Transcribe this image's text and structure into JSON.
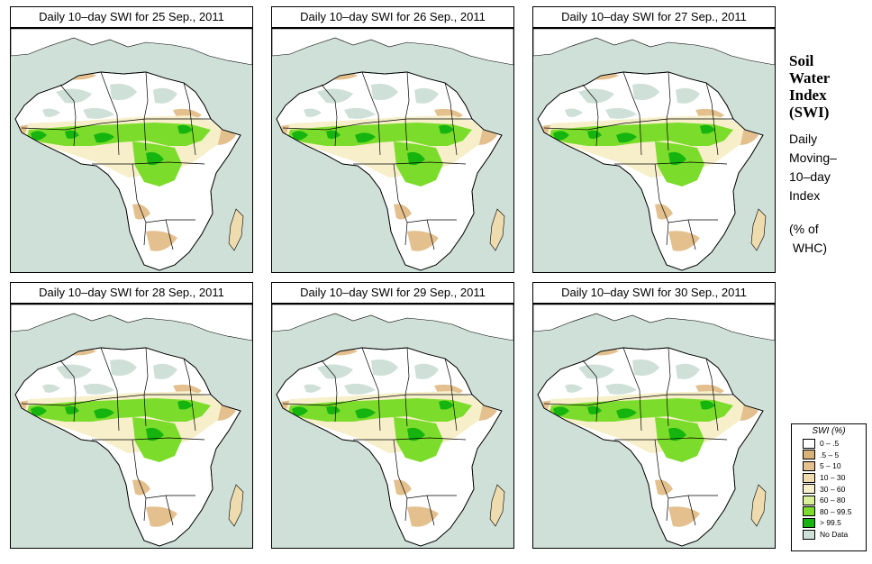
{
  "panels": [
    {
      "title": "Daily 10–day SWI for  25 Sep., 2011"
    },
    {
      "title": "Daily 10–day SWI for  26 Sep., 2011"
    },
    {
      "title": "Daily 10–day SWI for  27 Sep., 2011"
    },
    {
      "title": "Daily 10–day SWI for  28 Sep., 2011"
    },
    {
      "title": "Daily 10–day SWI for  29 Sep., 2011"
    },
    {
      "title": "Daily 10–day SWI for  30 Sep., 2011"
    }
  ],
  "side": {
    "title_lines": [
      "Soil",
      "Water",
      "Index",
      "(SWI)"
    ],
    "sub_lines": [
      "Daily",
      "Moving–",
      "10–day",
      "Index"
    ],
    "unit_lines": [
      "(% of",
      " WHC)"
    ]
  },
  "legend": {
    "title": "SWI (%)",
    "items": [
      {
        "label": "0 – .5",
        "color": "#ffffff"
      },
      {
        "label": ".5 – 5",
        "color": "#d9b27a"
      },
      {
        "label": "5 – 10",
        "color": "#e3c08e"
      },
      {
        "label": "10 – 30",
        "color": "#efdcae"
      },
      {
        "label": "30 – 60",
        "color": "#f6efc9"
      },
      {
        "label": "60 – 80",
        "color": "#d9ef9a"
      },
      {
        "label": "80 – 99.5",
        "color": "#7cdc2c"
      },
      {
        "label": "> 99.5",
        "color": "#16b40f"
      },
      {
        "label": "No Data",
        "color": "#cfe0d9"
      }
    ]
  }
}
